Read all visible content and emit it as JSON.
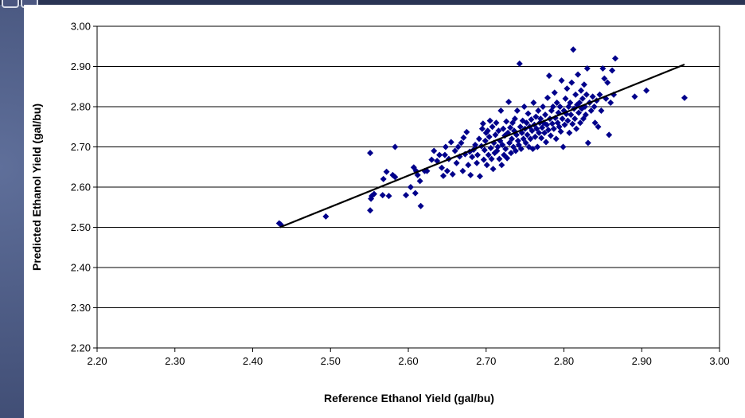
{
  "chart_data": {
    "type": "scatter",
    "title": "",
    "xlabel": "Reference Ethanol Yield (gal/bu)",
    "ylabel": "Predicted Ethanol Yield (gal/bu)",
    "xlim": [
      2.2,
      3.0
    ],
    "ylim": [
      2.2,
      3.0
    ],
    "xticks": [
      "2.20",
      "2.30",
      "2.40",
      "2.50",
      "2.60",
      "2.70",
      "2.80",
      "2.90",
      "3.00"
    ],
    "yticks": [
      "2.20",
      "2.30",
      "2.40",
      "2.50",
      "2.60",
      "2.70",
      "2.80",
      "2.90",
      "3.00"
    ],
    "grid": "horizontal",
    "legend": "none",
    "marker_color": "#00008b",
    "line_color": "#000000",
    "trendline": {
      "x": [
        2.435,
        2.955
      ],
      "y": [
        2.5,
        2.905
      ]
    },
    "series": [
      {
        "marker": "diamond",
        "points": [
          [
            2.434,
            2.51
          ],
          [
            2.436,
            2.507
          ],
          [
            2.494,
            2.527
          ],
          [
            2.551,
            2.542
          ],
          [
            2.552,
            2.571
          ],
          [
            2.553,
            2.578
          ],
          [
            2.551,
            2.685
          ],
          [
            2.556,
            2.583
          ],
          [
            2.567,
            2.58
          ],
          [
            2.568,
            2.62
          ],
          [
            2.572,
            2.638
          ],
          [
            2.575,
            2.578
          ],
          [
            2.58,
            2.63
          ],
          [
            2.583,
            2.625
          ],
          [
            2.583,
            2.7
          ],
          [
            2.597,
            2.58
          ],
          [
            2.603,
            2.6
          ],
          [
            2.607,
            2.649
          ],
          [
            2.609,
            2.585
          ],
          [
            2.61,
            2.64
          ],
          [
            2.612,
            2.63
          ],
          [
            2.615,
            2.615
          ],
          [
            2.616,
            2.553
          ],
          [
            2.621,
            2.64
          ],
          [
            2.624,
            2.64
          ],
          [
            2.63,
            2.668
          ],
          [
            2.633,
            2.69
          ],
          [
            2.637,
            2.665
          ],
          [
            2.64,
            2.68
          ],
          [
            2.643,
            2.648
          ],
          [
            2.645,
            2.628
          ],
          [
            2.647,
            2.68
          ],
          [
            2.648,
            2.7
          ],
          [
            2.65,
            2.64
          ],
          [
            2.652,
            2.67
          ],
          [
            2.655,
            2.712
          ],
          [
            2.657,
            2.632
          ],
          [
            2.66,
            2.69
          ],
          [
            2.662,
            2.66
          ],
          [
            2.664,
            2.7
          ],
          [
            2.666,
            2.676
          ],
          [
            2.668,
            2.71
          ],
          [
            2.67,
            2.64
          ],
          [
            2.671,
            2.723
          ],
          [
            2.673,
            2.682
          ],
          [
            2.675,
            2.737
          ],
          [
            2.677,
            2.655
          ],
          [
            2.679,
            2.688
          ],
          [
            2.68,
            2.63
          ],
          [
            2.682,
            2.675
          ],
          [
            2.684,
            2.693
          ],
          [
            2.686,
            2.705
          ],
          [
            2.688,
            2.66
          ],
          [
            2.689,
            2.68
          ],
          [
            2.691,
            2.72
          ],
          [
            2.692,
            2.627
          ],
          [
            2.694,
            2.702
          ],
          [
            2.695,
            2.745
          ],
          [
            2.696,
            2.758
          ],
          [
            2.697,
            2.668
          ],
          [
            2.698,
            2.692
          ],
          [
            2.699,
            2.715
          ],
          [
            2.7,
            2.735
          ],
          [
            2.701,
            2.655
          ],
          [
            2.702,
            2.74
          ],
          [
            2.703,
            2.68
          ],
          [
            2.704,
            2.725
          ],
          [
            2.705,
            2.765
          ],
          [
            2.706,
            2.697
          ],
          [
            2.707,
            2.67
          ],
          [
            2.708,
            2.75
          ],
          [
            2.709,
            2.645
          ],
          [
            2.71,
            2.71
          ],
          [
            2.711,
            2.685
          ],
          [
            2.712,
            2.73
          ],
          [
            2.713,
            2.76
          ],
          [
            2.714,
            2.69
          ],
          [
            2.715,
            2.7
          ],
          [
            2.716,
            2.74
          ],
          [
            2.717,
            2.67
          ],
          [
            2.718,
            2.715
          ],
          [
            2.719,
            2.79
          ],
          [
            2.72,
            2.655
          ],
          [
            2.721,
            2.705
          ],
          [
            2.722,
            2.745
          ],
          [
            2.723,
            2.68
          ],
          [
            2.724,
            2.728
          ],
          [
            2.725,
            2.695
          ],
          [
            2.726,
            2.763
          ],
          [
            2.727,
            2.672
          ],
          [
            2.728,
            2.735
          ],
          [
            2.729,
            2.812
          ],
          [
            2.73,
            2.71
          ],
          [
            2.731,
            2.748
          ],
          [
            2.732,
            2.685
          ],
          [
            2.733,
            2.72
          ],
          [
            2.734,
            2.76
          ],
          [
            2.735,
            2.7
          ],
          [
            2.736,
            2.74
          ],
          [
            2.737,
            2.77
          ],
          [
            2.738,
            2.69
          ],
          [
            2.739,
            2.73
          ],
          [
            2.74,
            2.79
          ],
          [
            2.741,
            2.715
          ],
          [
            2.742,
            2.705
          ],
          [
            2.743,
            2.907
          ],
          [
            2.744,
            2.75
          ],
          [
            2.745,
            2.695
          ],
          [
            2.746,
            2.735
          ],
          [
            2.747,
            2.765
          ],
          [
            2.748,
            2.72
          ],
          [
            2.749,
            2.8
          ],
          [
            2.75,
            2.745
          ],
          [
            2.751,
            2.71
          ],
          [
            2.752,
            2.76
          ],
          [
            2.753,
            2.73
          ],
          [
            2.754,
            2.783
          ],
          [
            2.755,
            2.7
          ],
          [
            2.756,
            2.75
          ],
          [
            2.757,
            2.72
          ],
          [
            2.758,
            2.768
          ],
          [
            2.759,
            2.74
          ],
          [
            2.76,
            2.695
          ],
          [
            2.761,
            2.81
          ],
          [
            2.762,
            2.755
          ],
          [
            2.763,
            2.725
          ],
          [
            2.764,
            2.775
          ],
          [
            2.765,
            2.745
          ],
          [
            2.766,
            2.7
          ],
          [
            2.767,
            2.79
          ],
          [
            2.768,
            2.735
          ],
          [
            2.769,
            2.76
          ],
          [
            2.77,
            2.77
          ],
          [
            2.771,
            2.722
          ],
          [
            2.772,
            2.748
          ],
          [
            2.773,
            2.8
          ],
          [
            2.774,
            2.76
          ],
          [
            2.775,
            2.735
          ],
          [
            2.776,
            2.78
          ],
          [
            2.777,
            2.712
          ],
          [
            2.778,
            2.755
          ],
          [
            2.779,
            2.822
          ],
          [
            2.78,
            2.742
          ],
          [
            2.781,
            2.877
          ],
          [
            2.782,
            2.77
          ],
          [
            2.783,
            2.728
          ],
          [
            2.784,
            2.79
          ],
          [
            2.785,
            2.758
          ],
          [
            2.786,
            2.8
          ],
          [
            2.787,
            2.745
          ],
          [
            2.788,
            2.835
          ],
          [
            2.789,
            2.772
          ],
          [
            2.79,
            2.72
          ],
          [
            2.791,
            2.81
          ],
          [
            2.792,
            2.76
          ],
          [
            2.793,
            2.785
          ],
          [
            2.794,
            2.75
          ],
          [
            2.795,
            2.8
          ],
          [
            2.796,
            2.738
          ],
          [
            2.797,
            2.865
          ],
          [
            2.798,
            2.77
          ],
          [
            2.799,
            2.7
          ],
          [
            2.8,
            2.79
          ],
          [
            2.801,
            2.755
          ],
          [
            2.802,
            2.82
          ],
          [
            2.803,
            2.782
          ],
          [
            2.804,
            2.845
          ],
          [
            2.805,
            2.765
          ],
          [
            2.806,
            2.8
          ],
          [
            2.807,
            2.735
          ],
          [
            2.808,
            2.81
          ],
          [
            2.809,
            2.78
          ],
          [
            2.81,
            2.86
          ],
          [
            2.811,
            2.757
          ],
          [
            2.812,
            2.942
          ],
          [
            2.813,
            2.795
          ],
          [
            2.814,
            2.77
          ],
          [
            2.815,
            2.83
          ],
          [
            2.816,
            2.745
          ],
          [
            2.817,
            2.805
          ],
          [
            2.818,
            2.88
          ],
          [
            2.819,
            2.785
          ],
          [
            2.82,
            2.81
          ],
          [
            2.821,
            2.76
          ],
          [
            2.822,
            2.84
          ],
          [
            2.823,
            2.795
          ],
          [
            2.824,
            2.82
          ],
          [
            2.825,
            2.77
          ],
          [
            2.826,
            2.855
          ],
          [
            2.827,
            2.8
          ],
          [
            2.828,
            2.78
          ],
          [
            2.829,
            2.83
          ],
          [
            2.83,
            2.895
          ],
          [
            2.831,
            2.71
          ],
          [
            2.833,
            2.81
          ],
          [
            2.835,
            2.79
          ],
          [
            2.837,
            2.825
          ],
          [
            2.839,
            2.8
          ],
          [
            2.84,
            2.76
          ],
          [
            2.842,
            2.815
          ],
          [
            2.844,
            2.75
          ],
          [
            2.846,
            2.83
          ],
          [
            2.848,
            2.79
          ],
          [
            2.85,
            2.895
          ],
          [
            2.852,
            2.87
          ],
          [
            2.854,
            2.82
          ],
          [
            2.856,
            2.86
          ],
          [
            2.858,
            2.73
          ],
          [
            2.86,
            2.81
          ],
          [
            2.862,
            2.89
          ],
          [
            2.864,
            2.83
          ],
          [
            2.866,
            2.92
          ],
          [
            2.891,
            2.825
          ],
          [
            2.906,
            2.84
          ],
          [
            2.955,
            2.822
          ]
        ]
      }
    ]
  }
}
